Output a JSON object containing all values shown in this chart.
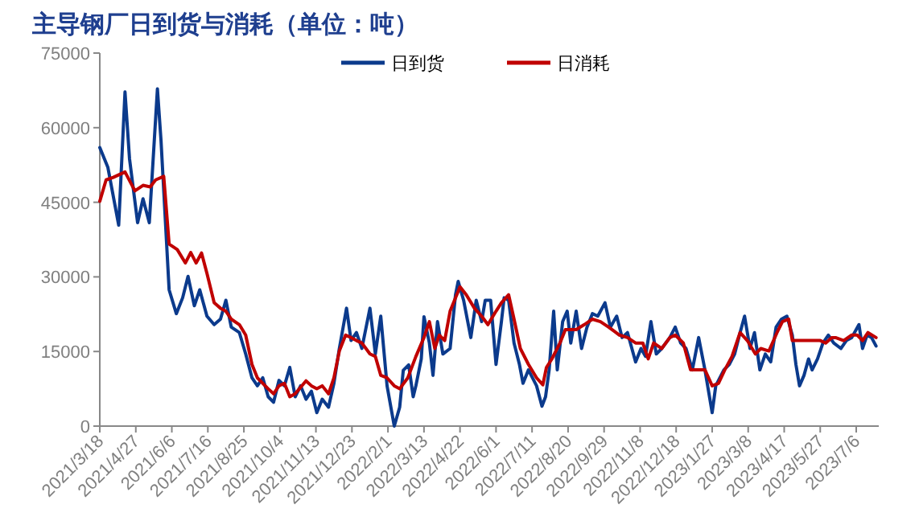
{
  "chart_data": {
    "type": "line",
    "title": "主导钢厂日到货与消耗（单位：吨）",
    "legend": "top",
    "xlim": [
      "2021-03-18",
      "2023-07-31"
    ],
    "xticks": [
      {
        "value": "2021-03-18",
        "label": "2021/3/18"
      },
      {
        "value": "2021-04-27",
        "label": "2021/4/27"
      },
      {
        "value": "2021-06-06",
        "label": "2021/6/6"
      },
      {
        "value": "2021-07-16",
        "label": "2021/7/16"
      },
      {
        "value": "2021-08-25",
        "label": "2021/8/25"
      },
      {
        "value": "2021-10-04",
        "label": "2021/10/4"
      },
      {
        "value": "2021-11-13",
        "label": "2021/11/13"
      },
      {
        "value": "2021-12-23",
        "label": "2021/12/23"
      },
      {
        "value": "2022-02-01",
        "label": "2022/2/1"
      },
      {
        "value": "2022-03-13",
        "label": "2022/3/13"
      },
      {
        "value": "2022-04-22",
        "label": "2022/4/22"
      },
      {
        "value": "2022-06-01",
        "label": "2022/6/1"
      },
      {
        "value": "2022-07-11",
        "label": "2022/7/11"
      },
      {
        "value": "2022-08-20",
        "label": "2022/8/20"
      },
      {
        "value": "2022-09-29",
        "label": "2022/9/29"
      },
      {
        "value": "2022-11-08",
        "label": "2022/11/8"
      },
      {
        "value": "2022-12-18",
        "label": "2022/12/18"
      },
      {
        "value": "2023-01-27",
        "label": "2023/1/27"
      },
      {
        "value": "2023-03-08",
        "label": "2023/3/8"
      },
      {
        "value": "2023-04-17",
        "label": "2023/4/17"
      },
      {
        "value": "2023-05-27",
        "label": "2023/5/27"
      },
      {
        "value": "2023-07-06",
        "label": "2023/7/6"
      }
    ],
    "ylim": [
      0,
      75000
    ],
    "yticks": [
      0,
      15000,
      30000,
      45000,
      60000,
      75000
    ],
    "series": [
      {
        "name": "日到货",
        "color": "#0b3a8c",
        "x": [
          "2021-03-18",
          "2021-03-27",
          "2021-04-08",
          "2021-04-15",
          "2021-04-20",
          "2021-04-29",
          "2021-05-05",
          "2021-05-12",
          "2021-05-21",
          "2021-05-25",
          "2021-06-03",
          "2021-06-11",
          "2021-06-18",
          "2021-06-24",
          "2021-07-01",
          "2021-07-07",
          "2021-07-15",
          "2021-07-23",
          "2021-07-30",
          "2021-08-05",
          "2021-08-11",
          "2021-08-20",
          "2021-08-27",
          "2021-09-03",
          "2021-09-09",
          "2021-09-15",
          "2021-09-21",
          "2021-09-27",
          "2021-10-03",
          "2021-10-09",
          "2021-10-15",
          "2021-10-21",
          "2021-10-27",
          "2021-11-02",
          "2021-11-08",
          "2021-11-14",
          "2021-11-20",
          "2021-11-27",
          "2021-12-03",
          "2021-12-09",
          "2021-12-17",
          "2021-12-22",
          "2021-12-28",
          "2022-01-03",
          "2022-01-12",
          "2022-01-18",
          "2022-01-24",
          "2022-01-31",
          "2022-02-08",
          "2022-02-14",
          "2022-02-18",
          "2022-02-24",
          "2022-03-01",
          "2022-03-04",
          "2022-03-10",
          "2022-03-13",
          "2022-03-19",
          "2022-03-23",
          "2022-03-28",
          "2022-04-03",
          "2022-04-11",
          "2022-04-17",
          "2022-04-20",
          "2022-04-26",
          "2022-05-04",
          "2022-05-10",
          "2022-05-16",
          "2022-05-20",
          "2022-05-26",
          "2022-06-01",
          "2022-06-07",
          "2022-06-10",
          "2022-06-15",
          "2022-06-21",
          "2022-06-27",
          "2022-07-01",
          "2022-07-07",
          "2022-07-16",
          "2022-07-22",
          "2022-07-26",
          "2022-07-30",
          "2022-08-04",
          "2022-08-08",
          "2022-08-14",
          "2022-08-19",
          "2022-08-23",
          "2022-08-29",
          "2022-09-04",
          "2022-09-10",
          "2022-09-16",
          "2022-09-22",
          "2022-09-30",
          "2022-10-06",
          "2022-10-13",
          "2022-10-19",
          "2022-10-25",
          "2022-11-03",
          "2022-11-09",
          "2022-11-14",
          "2022-11-20",
          "2022-11-26",
          "2022-12-02",
          "2022-12-11",
          "2022-12-17",
          "2022-12-23",
          "2022-12-29",
          "2023-01-05",
          "2023-01-12",
          "2023-01-19",
          "2023-01-27",
          "2023-01-31",
          "2023-02-09",
          "2023-02-15",
          "2023-02-21",
          "2023-02-27",
          "2023-03-04",
          "2023-03-10",
          "2023-03-15",
          "2023-03-21",
          "2023-03-27",
          "2023-04-02",
          "2023-04-08",
          "2023-04-14",
          "2023-04-20",
          "2023-04-26",
          "2023-04-30",
          "2023-05-04",
          "2023-05-09",
          "2023-05-14",
          "2023-05-18",
          "2023-05-24",
          "2023-05-30",
          "2023-06-05",
          "2023-06-11",
          "2023-06-19",
          "2023-06-25",
          "2023-07-01",
          "2023-07-09",
          "2023-07-13",
          "2023-07-18",
          "2023-07-23",
          "2023-07-28"
        ],
        "values": [
          56000,
          52000,
          40400,
          67200,
          53800,
          40900,
          45700,
          40900,
          67800,
          57400,
          27400,
          22600,
          25800,
          30100,
          24200,
          27400,
          22100,
          20400,
          21500,
          25300,
          19900,
          18800,
          14500,
          9700,
          8100,
          9700,
          5900,
          4800,
          9200,
          8100,
          11800,
          5900,
          8100,
          5400,
          7000,
          2700,
          5400,
          3800,
          8600,
          15600,
          23700,
          17200,
          18800,
          15600,
          23700,
          14500,
          22100,
          8100,
          0,
          3800,
          11200,
          12300,
          5900,
          8100,
          13500,
          22000,
          16700,
          10200,
          21000,
          14500,
          15600,
          26400,
          29100,
          25300,
          17800,
          25300,
          21000,
          25300,
          25300,
          12400,
          21000,
          25800,
          25300,
          16700,
          12400,
          8600,
          11300,
          8100,
          4000,
          5900,
          11300,
          23100,
          11300,
          21000,
          23100,
          16700,
          23100,
          15600,
          19900,
          22600,
          22100,
          24800,
          19900,
          22100,
          17800,
          18800,
          12900,
          15600,
          14000,
          21000,
          14500,
          15600,
          17800,
          19900,
          16700,
          15600,
          11300,
          17800,
          11300,
          2700,
          8100,
          11300,
          12400,
          14500,
          18800,
          22100,
          15600,
          18800,
          11300,
          14500,
          12900,
          19900,
          21500,
          22100,
          18300,
          12400,
          8100,
          10200,
          13500,
          11300,
          13500,
          16700,
          18300,
          16700,
          15600,
          17200,
          17800,
          20400,
          15600,
          18300,
          17800,
          16100
        ]
      },
      {
        "name": "日消耗",
        "color": "#c00000",
        "x": [
          "2021-03-18",
          "2021-03-25",
          "2021-04-02",
          "2021-04-15",
          "2021-04-26",
          "2021-05-05",
          "2021-05-13",
          "2021-05-19",
          "2021-05-28",
          "2021-06-03",
          "2021-06-12",
          "2021-06-21",
          "2021-06-27",
          "2021-07-03",
          "2021-07-09",
          "2021-07-15",
          "2021-07-23",
          "2021-07-30",
          "2021-08-05",
          "2021-08-11",
          "2021-08-20",
          "2021-08-27",
          "2021-09-03",
          "2021-09-09",
          "2021-09-15",
          "2021-09-21",
          "2021-09-27",
          "2021-10-03",
          "2021-10-09",
          "2021-10-15",
          "2021-10-21",
          "2021-11-02",
          "2021-11-08",
          "2021-11-14",
          "2021-11-20",
          "2021-11-27",
          "2021-12-03",
          "2021-12-09",
          "2021-12-16",
          "2021-12-22",
          "2021-12-28",
          "2022-01-03",
          "2022-01-12",
          "2022-01-18",
          "2022-01-24",
          "2022-01-31",
          "2022-02-08",
          "2022-02-14",
          "2022-02-23",
          "2022-03-04",
          "2022-03-13",
          "2022-03-19",
          "2022-03-25",
          "2022-03-30",
          "2022-04-05",
          "2022-04-11",
          "2022-04-22",
          "2022-04-29",
          "2022-05-08",
          "2022-05-16",
          "2022-05-23",
          "2022-06-01",
          "2022-06-07",
          "2022-06-15",
          "2022-06-21",
          "2022-06-28",
          "2022-07-07",
          "2022-07-16",
          "2022-07-23",
          "2022-07-27",
          "2022-08-02",
          "2022-08-11",
          "2022-08-17",
          "2022-08-29",
          "2022-09-07",
          "2022-09-16",
          "2022-09-25",
          "2022-10-04",
          "2022-10-16",
          "2022-10-25",
          "2022-11-03",
          "2022-11-11",
          "2022-11-17",
          "2022-11-23",
          "2022-12-02",
          "2022-12-11",
          "2022-12-17",
          "2022-12-26",
          "2023-01-03",
          "2023-01-19",
          "2023-01-27",
          "2023-02-03",
          "2023-02-10",
          "2023-02-18",
          "2023-02-27",
          "2023-03-07",
          "2023-03-16",
          "2023-03-22",
          "2023-03-31",
          "2023-04-09",
          "2023-04-15",
          "2023-04-22",
          "2023-04-26",
          "2023-05-27",
          "2023-06-02",
          "2023-06-09",
          "2023-06-13",
          "2023-06-22",
          "2023-07-01",
          "2023-07-07",
          "2023-07-13",
          "2023-07-19",
          "2023-07-28"
        ],
        "values": [
          45200,
          49500,
          50000,
          51100,
          47300,
          48400,
          48100,
          49500,
          50200,
          36600,
          35500,
          32800,
          34900,
          32800,
          34800,
          30700,
          24800,
          23700,
          23100,
          21500,
          20400,
          18300,
          12400,
          9700,
          8600,
          7500,
          6500,
          8100,
          8600,
          5900,
          6500,
          9100,
          8100,
          7500,
          8100,
          6500,
          9700,
          15100,
          18300,
          17800,
          17200,
          16700,
          14500,
          14000,
          10200,
          9700,
          8100,
          7500,
          9700,
          14000,
          17800,
          21000,
          15600,
          18300,
          17200,
          23100,
          28000,
          26400,
          23700,
          22100,
          20400,
          23100,
          24800,
          26400,
          21500,
          15600,
          12400,
          9700,
          8300,
          11800,
          13500,
          16700,
          19400,
          19400,
          20400,
          21500,
          21000,
          19900,
          18300,
          17800,
          16700,
          16700,
          13500,
          16700,
          15600,
          17800,
          18300,
          16700,
          11300,
          11300,
          8100,
          8600,
          11300,
          14000,
          18800,
          17200,
          14500,
          15600,
          15100,
          18800,
          21000,
          21500,
          17200,
          17200,
          16700,
          17800,
          17800,
          17200,
          18300,
          18300,
          17200,
          18800,
          17800
        ]
      }
    ]
  }
}
